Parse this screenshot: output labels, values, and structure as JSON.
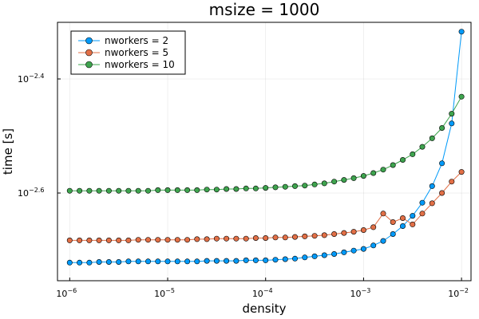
{
  "chart_data": {
    "type": "line",
    "title": "msize = 1000",
    "xlabel": "density",
    "ylabel": "time [s]",
    "x_scale": "log",
    "y_scale": "log",
    "xlim": [
      7.5e-07,
      0.0125
    ],
    "ylim_log10": [
      -2.7538,
      -2.3007
    ],
    "x_ticks": [
      {
        "value": 1e-06,
        "base": "10",
        "exp": "−6"
      },
      {
        "value": 1e-05,
        "base": "10",
        "exp": "−5"
      },
      {
        "value": 0.0001,
        "base": "10",
        "exp": "−4"
      },
      {
        "value": 0.001,
        "base": "10",
        "exp": "−3"
      },
      {
        "value": 0.01,
        "base": "10",
        "exp": "−2"
      }
    ],
    "y_ticks": [
      {
        "log10": -2.6,
        "base": "10",
        "exp": "−2.6"
      },
      {
        "log10": -2.4,
        "base": "10",
        "exp": "−2.4"
      }
    ],
    "grid": true,
    "legend_position": "top-left",
    "series": [
      {
        "name": "nworkers = 2",
        "color": "#009AF9",
        "log10_x": [
          -6.0,
          -5.9,
          -5.8,
          -5.7,
          -5.6,
          -5.5,
          -5.4,
          -5.3,
          -5.2,
          -5.1,
          -5.0,
          -4.9,
          -4.8,
          -4.7,
          -4.6,
          -4.5,
          -4.4,
          -4.3,
          -4.2,
          -4.1,
          -4.0,
          -3.9,
          -3.8,
          -3.7,
          -3.6,
          -3.5,
          -3.4,
          -3.3,
          -3.2,
          -3.1,
          -3.0,
          -2.9,
          -2.8,
          -2.7,
          -2.6,
          -2.5,
          -2.4,
          -2.3,
          -2.2,
          -2.1,
          -2.0
        ],
        "log10_y": [
          -2.722,
          -2.722,
          -2.722,
          -2.721,
          -2.721,
          -2.721,
          -2.72,
          -2.72,
          -2.72,
          -2.72,
          -2.72,
          -2.72,
          -2.72,
          -2.72,
          -2.719,
          -2.719,
          -2.719,
          -2.719,
          -2.718,
          -2.718,
          -2.718,
          -2.717,
          -2.716,
          -2.715,
          -2.713,
          -2.711,
          -2.709,
          -2.707,
          -2.704,
          -2.701,
          -2.698,
          -2.692,
          -2.684,
          -2.672,
          -2.658,
          -2.64,
          -2.617,
          -2.588,
          -2.548,
          -2.478,
          -2.317
        ]
      },
      {
        "name": "nworkers = 5",
        "color": "#E26F46",
        "log10_x": [
          -6.0,
          -5.9,
          -5.8,
          -5.7,
          -5.6,
          -5.5,
          -5.4,
          -5.3,
          -5.2,
          -5.1,
          -5.0,
          -4.9,
          -4.8,
          -4.7,
          -4.6,
          -4.5,
          -4.4,
          -4.3,
          -4.2,
          -4.1,
          -4.0,
          -3.9,
          -3.8,
          -3.7,
          -3.6,
          -3.5,
          -3.4,
          -3.3,
          -3.2,
          -3.1,
          -3.0,
          -2.9,
          -2.8,
          -2.7,
          -2.6,
          -2.5,
          -2.4,
          -2.3,
          -2.2,
          -2.1,
          -2.0
        ],
        "log10_y": [
          -2.683,
          -2.683,
          -2.683,
          -2.683,
          -2.683,
          -2.683,
          -2.683,
          -2.682,
          -2.682,
          -2.682,
          -2.682,
          -2.682,
          -2.682,
          -2.681,
          -2.681,
          -2.68,
          -2.68,
          -2.68,
          -2.68,
          -2.679,
          -2.679,
          -2.678,
          -2.678,
          -2.677,
          -2.676,
          -2.675,
          -2.674,
          -2.672,
          -2.67,
          -2.668,
          -2.665,
          -2.66,
          -2.636,
          -2.651,
          -2.644,
          -2.655,
          -2.636,
          -2.618,
          -2.6,
          -2.58,
          -2.563
        ]
      },
      {
        "name": "nworkers = 10",
        "color": "#3EA44E",
        "log10_x": [
          -6.0,
          -5.9,
          -5.8,
          -5.7,
          -5.6,
          -5.5,
          -5.4,
          -5.3,
          -5.2,
          -5.1,
          -5.0,
          -4.9,
          -4.8,
          -4.7,
          -4.6,
          -4.5,
          -4.4,
          -4.3,
          -4.2,
          -4.1,
          -4.0,
          -3.9,
          -3.8,
          -3.7,
          -3.6,
          -3.5,
          -3.4,
          -3.3,
          -3.2,
          -3.1,
          -3.0,
          -2.9,
          -2.8,
          -2.7,
          -2.6,
          -2.5,
          -2.4,
          -2.3,
          -2.2,
          -2.1,
          -2.0
        ],
        "log10_y": [
          -2.596,
          -2.596,
          -2.596,
          -2.596,
          -2.596,
          -2.596,
          -2.596,
          -2.596,
          -2.596,
          -2.595,
          -2.595,
          -2.595,
          -2.595,
          -2.595,
          -2.594,
          -2.594,
          -2.593,
          -2.593,
          -2.592,
          -2.592,
          -2.591,
          -2.59,
          -2.589,
          -2.588,
          -2.587,
          -2.585,
          -2.583,
          -2.58,
          -2.577,
          -2.574,
          -2.57,
          -2.565,
          -2.559,
          -2.551,
          -2.542,
          -2.532,
          -2.519,
          -2.504,
          -2.486,
          -2.461,
          -2.431
        ]
      }
    ]
  }
}
